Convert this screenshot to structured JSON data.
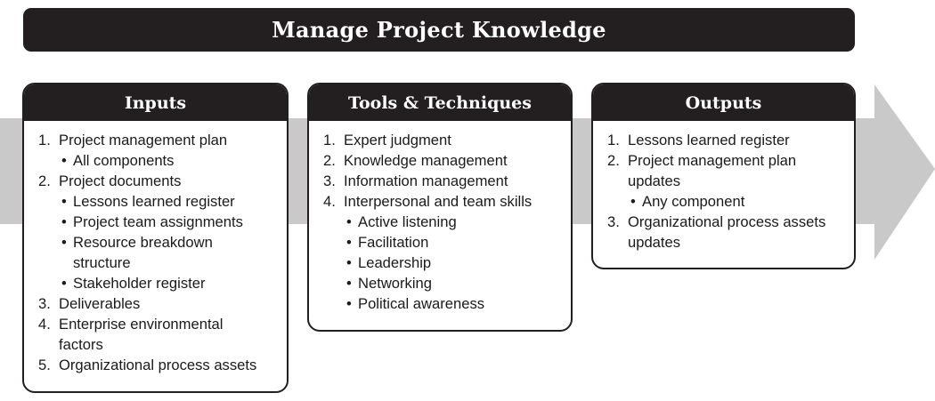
{
  "title": "Manage Project Knowledge",
  "colors": {
    "dark": "#231f20",
    "arrow": "#c9c9c9"
  },
  "inputs": {
    "header": "Inputs",
    "items": [
      {
        "num": "1.",
        "lines": [
          "Project management plan"
        ],
        "subs": [
          [
            "All components"
          ]
        ]
      },
      {
        "num": "2.",
        "lines": [
          "Project documents"
        ],
        "subs": [
          [
            "Lessons learned register"
          ],
          [
            "Project team assignments"
          ],
          [
            "Resource breakdown",
            "structure"
          ],
          [
            "Stakeholder register"
          ]
        ]
      },
      {
        "num": "3.",
        "lines": [
          "Deliverables"
        ],
        "subs": []
      },
      {
        "num": "4.",
        "lines": [
          "Enterprise environmental",
          "factors"
        ],
        "subs": []
      },
      {
        "num": "5.",
        "lines": [
          "Organizational process assets"
        ],
        "subs": []
      }
    ]
  },
  "tools": {
    "header": "Tools & Techniques",
    "items": [
      {
        "num": "1.",
        "lines": [
          "Expert judgment"
        ],
        "subs": []
      },
      {
        "num": "2.",
        "lines": [
          "Knowledge management"
        ],
        "subs": []
      },
      {
        "num": "3.",
        "lines": [
          "Information management"
        ],
        "subs": []
      },
      {
        "num": "4.",
        "lines": [
          "Interpersonal and team skills"
        ],
        "subs": [
          [
            "Active listening"
          ],
          [
            "Facilitation"
          ],
          [
            "Leadership"
          ],
          [
            "Networking"
          ],
          [
            "Political awareness"
          ]
        ]
      }
    ]
  },
  "outputs": {
    "header": "Outputs",
    "items": [
      {
        "num": "1.",
        "lines": [
          "Lessons learned register"
        ],
        "subs": []
      },
      {
        "num": "2.",
        "lines": [
          "Project management plan",
          "updates"
        ],
        "subs": [
          [
            "Any component"
          ]
        ]
      },
      {
        "num": "3.",
        "lines": [
          "Organizational process assets",
          "updates"
        ],
        "subs": []
      }
    ]
  }
}
